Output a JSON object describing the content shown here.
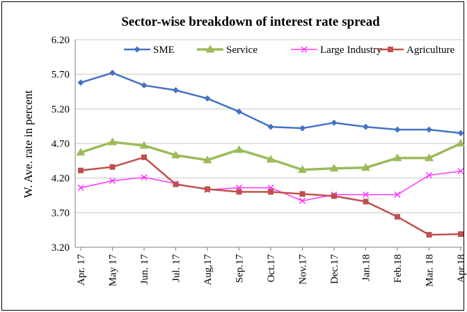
{
  "chart_data": {
    "type": "line",
    "title": "Sector-wise breakdown of interest rate spread",
    "xlabel": "",
    "ylabel": "W. Ave. rate in percent",
    "categories": [
      "Apr. 17",
      "May 17",
      "Jun. 17",
      "Jul. 17",
      "Aug,17",
      "Sep.17",
      "Oct.17",
      "Nov.17",
      "Dec.17",
      "Jan.18",
      "Feb.18",
      "Mar. 18",
      "Apr.18"
    ],
    "yticks": [
      "3.20",
      "3.70",
      "4.20",
      "4.70",
      "5.20",
      "5.70",
      "6.20"
    ],
    "ylim": [
      3.2,
      6.2
    ],
    "grid": true,
    "legend_position": "top",
    "series": [
      {
        "name": "SME",
        "color": "#4472c4",
        "marker": "diamond",
        "values": [
          5.58,
          5.72,
          5.54,
          5.47,
          5.35,
          5.16,
          4.94,
          4.92,
          5.0,
          4.94,
          4.9,
          4.9,
          4.85
        ]
      },
      {
        "name": "Service",
        "color": "#9bbb59",
        "marker": "triangle",
        "values": [
          4.57,
          4.72,
          4.67,
          4.53,
          4.46,
          4.61,
          4.47,
          4.32,
          4.34,
          4.35,
          4.49,
          4.49,
          4.7
        ]
      },
      {
        "name": "Large Industry",
        "color": "#ff33ff",
        "marker": "x",
        "values": [
          4.06,
          4.16,
          4.21,
          4.12,
          4.03,
          4.06,
          4.06,
          3.87,
          3.96,
          3.96,
          3.96,
          4.24,
          4.3
        ]
      },
      {
        "name": "Agriculture",
        "color": "#c0504d",
        "marker": "square",
        "values": [
          4.31,
          4.36,
          4.5,
          4.11,
          4.04,
          4.0,
          4.0,
          3.97,
          3.94,
          3.86,
          3.64,
          3.38,
          3.39
        ]
      }
    ]
  }
}
